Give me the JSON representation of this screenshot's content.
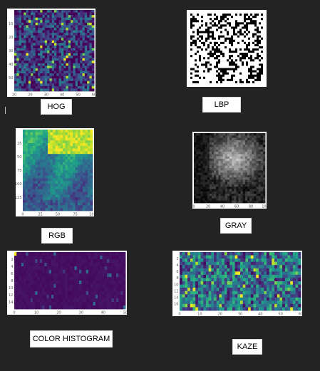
{
  "panels": [
    {
      "id": "hog",
      "label": "HOG",
      "kind": "heat",
      "palette": "viridis",
      "rows": 32,
      "cols": 34,
      "seed": 11,
      "base": 0.18,
      "spread": 0.28,
      "hot": 0.04,
      "ticks_y": [
        "10",
        "20",
        "30",
        "40",
        "50"
      ],
      "ticks_x": [
        "10",
        "20",
        "30",
        "40",
        "50",
        "60"
      ]
    },
    {
      "id": "lbp",
      "label": "LBP",
      "kind": "binary",
      "rows": 34,
      "cols": 36,
      "seed": 23,
      "density": 0.42,
      "ticks_y": [],
      "ticks_x": []
    },
    {
      "id": "rgb",
      "label": "RGB",
      "kind": "gradient",
      "palette": "viridis",
      "rows": 30,
      "cols": 28,
      "seed": 37,
      "ticks_y": [
        "25",
        "50",
        "75",
        "100",
        "125"
      ],
      "ticks_x": [
        "0",
        "25",
        "50",
        "75",
        "100"
      ]
    },
    {
      "id": "gray",
      "label": "GRAY",
      "kind": "grayscale",
      "rows": 30,
      "cols": 32,
      "seed": 41,
      "ticks_y": [],
      "ticks_x": [
        "0",
        "20",
        "40",
        "60",
        "80",
        "100"
      ]
    },
    {
      "id": "color_histogram",
      "label": "COLOR HISTOGRAM",
      "kind": "sparse",
      "palette": "viridis",
      "rows": 16,
      "cols": 48,
      "seed": 53,
      "ticks_y": [
        "2",
        "4",
        "6",
        "8",
        "10",
        "12",
        "14"
      ],
      "ticks_x": [
        "0",
        "10",
        "20",
        "30",
        "40",
        "50"
      ]
    },
    {
      "id": "kaze",
      "label": "KAZE",
      "kind": "heat",
      "palette": "viridis",
      "rows": 18,
      "cols": 46,
      "seed": 67,
      "base": 0.4,
      "spread": 0.3,
      "hot": 0.05,
      "ticks_y": [
        "2",
        "4",
        "6",
        "8",
        "10",
        "12",
        "14",
        "16"
      ],
      "ticks_x": [
        "0",
        "10",
        "20",
        "30",
        "40",
        "50",
        "60"
      ]
    }
  ],
  "colors": {
    "background": "#232323",
    "label_bg": "#ffffff",
    "label_text": "#000000"
  }
}
